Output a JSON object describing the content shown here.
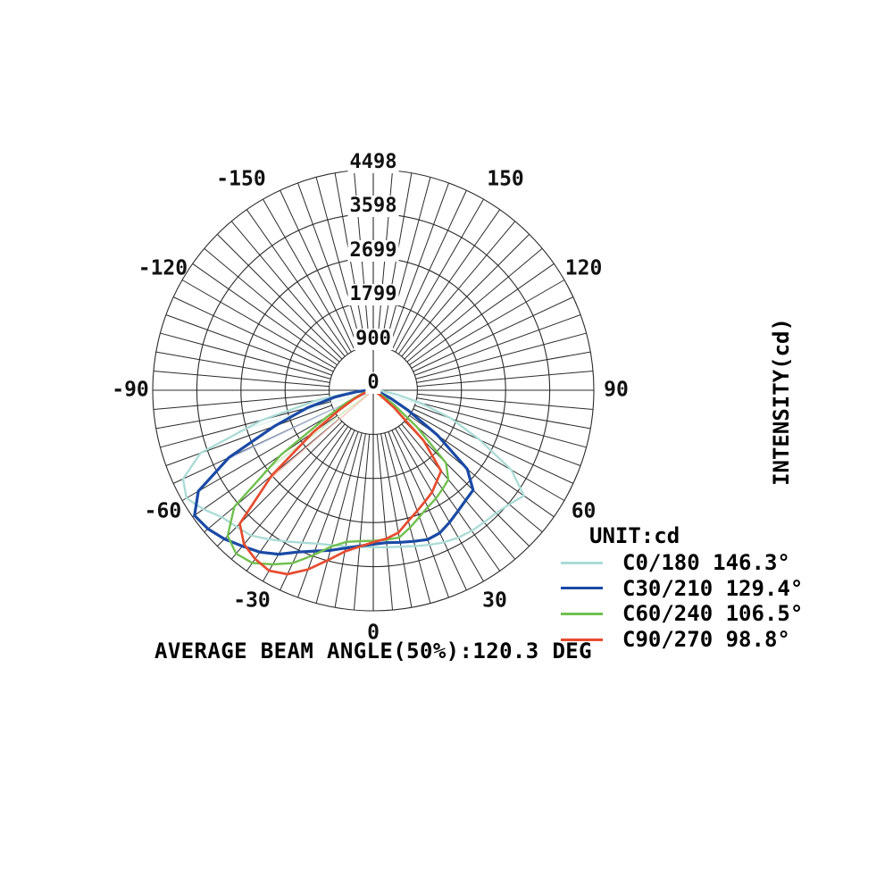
{
  "page": {
    "background": "#ffffff"
  },
  "chart_data": {
    "type": "line",
    "variant": "polar-photometric",
    "title": "",
    "unit_label": "UNIT:cd",
    "radial_axis_label": "INTENSITY(cd)",
    "footer": "AVERAGE BEAM ANGLE(50%):120.3 DEG",
    "radial_unit": "cd",
    "radial_ticks": [
      0,
      900,
      1799,
      2699,
      3598,
      4498
    ],
    "radial_max": 4498,
    "angle_labels_deg": [
      -150,
      -120,
      -90,
      -60,
      -30,
      0,
      30,
      60,
      90,
      120,
      150
    ],
    "angle_minor_step_deg": 5,
    "angle_zero_position": "bottom",
    "grid_on": true,
    "grid_color": "#2b2b2b",
    "legend_position": "right-bottom",
    "angles_deg": [
      -90,
      -85,
      -80,
      -75,
      -70,
      -65,
      -60,
      -55,
      -50,
      -45,
      -40,
      -35,
      -30,
      -25,
      -20,
      -15,
      -10,
      -5,
      0,
      5,
      10,
      15,
      20,
      25,
      30,
      35,
      40,
      45,
      50,
      55,
      60,
      65,
      70,
      75,
      80,
      85,
      90
    ],
    "series": [
      {
        "name": "C0/180",
        "label": "C0/180 146.3°",
        "beam_angle_deg": 146.3,
        "color": "#aadbd6",
        "ray_color": "#dff2ef",
        "values": [
          100,
          420,
          1150,
          2350,
          3750,
          4280,
          4400,
          4230,
          4030,
          3940,
          3870,
          3710,
          3560,
          3430,
          3330,
          3270,
          3230,
          3210,
          3200,
          3215,
          3240,
          3290,
          3355,
          3420,
          3470,
          3500,
          3515,
          3540,
          3620,
          3750,
          3250,
          2400,
          1700,
          1000,
          480,
          180,
          50
        ]
      },
      {
        "name": "C30/210",
        "label": "C30/210 129.4°",
        "beam_angle_deg": 129.4,
        "color": "#1a4aa6",
        "ray_color": "#b9c8e8",
        "values": [
          80,
          320,
          780,
          1400,
          2150,
          3250,
          4120,
          4450,
          4400,
          4290,
          4150,
          4030,
          3860,
          3640,
          3490,
          3380,
          3270,
          3190,
          3140,
          3120,
          3150,
          3190,
          3240,
          3210,
          3110,
          3010,
          2930,
          2880,
          2500,
          1600,
          820,
          400,
          160,
          40,
          0,
          0,
          0
        ]
      },
      {
        "name": "C60/240",
        "label": "C60/240 106.5°",
        "beam_angle_deg": 106.5,
        "color": "#70c04e",
        "ray_color": "#cdeab9",
        "values": [
          0,
          30,
          90,
          180,
          320,
          600,
          1100,
          2300,
          3700,
          4200,
          4350,
          4300,
          4100,
          3890,
          3580,
          3300,
          3140,
          3090,
          3070,
          3060,
          3050,
          2900,
          2750,
          2630,
          2550,
          2460,
          2380,
          2100,
          1150,
          520,
          210,
          60,
          0,
          0,
          0,
          0,
          0
        ]
      },
      {
        "name": "C90/270",
        "label": "C90/270 98.8°",
        "beam_angle_deg": 98.8,
        "color": "#e74c2f",
        "ray_color": "#f8c3b8",
        "values": [
          0,
          20,
          60,
          130,
          250,
          450,
          800,
          1500,
          2700,
          3850,
          4100,
          4200,
          4250,
          4140,
          3890,
          3590,
          3340,
          3200,
          3100,
          3040,
          2950,
          2760,
          2620,
          2500,
          2400,
          2260,
          2150,
          1450,
          560,
          160,
          40,
          0,
          0,
          0,
          0,
          0,
          0
        ]
      }
    ]
  }
}
